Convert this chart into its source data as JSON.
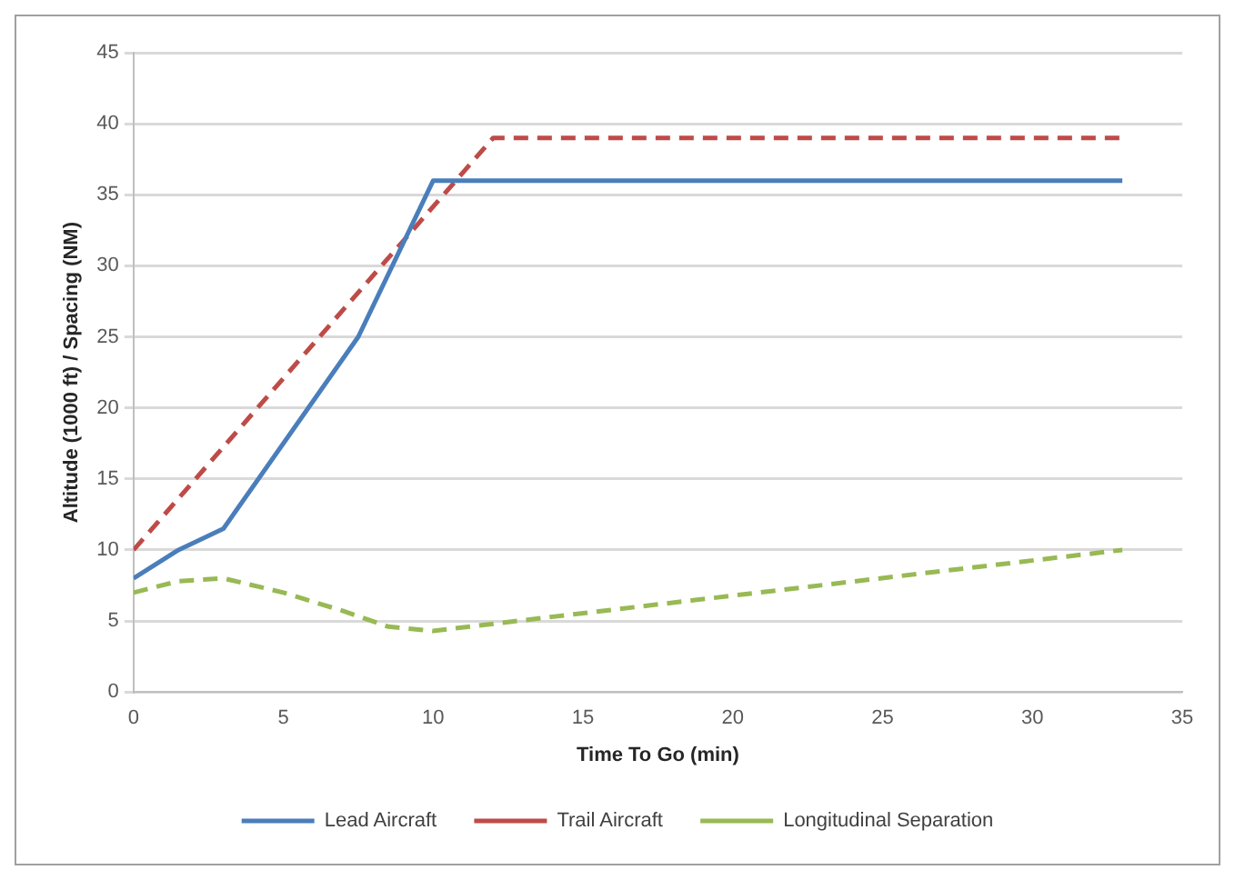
{
  "chart_data": {
    "type": "line",
    "xlabel": "Time To Go (min)",
    "ylabel": "Altitude (1000 ft) / Spacing (NM)",
    "xlim": [
      0,
      35
    ],
    "xticks": [
      0,
      5,
      10,
      15,
      20,
      25,
      30,
      35
    ],
    "ylim": [
      0,
      45
    ],
    "yticks": [
      0,
      5,
      10,
      15,
      20,
      25,
      30,
      35,
      40,
      45
    ],
    "grid": "y",
    "legend": "bottom",
    "marker": "none",
    "series": [
      {
        "name": "Lead Aircraft",
        "color": "#4a7ebb",
        "line_style": "solid",
        "x": [
          0,
          1.5,
          3,
          7.5,
          10,
          33
        ],
        "values": [
          8,
          10,
          11.5,
          25,
          36,
          36
        ]
      },
      {
        "name": "Trail Aircraft",
        "color": "#be4b48",
        "line_style": "dashed",
        "x": [
          0,
          12,
          33
        ],
        "values": [
          10,
          39,
          39
        ]
      },
      {
        "name": "Longitudinal Separation",
        "color": "#98b954",
        "line_style": "dashed",
        "x": [
          0,
          1.5,
          3,
          5,
          7,
          8.5,
          10,
          12,
          14,
          33
        ],
        "values": [
          7,
          7.8,
          8,
          7,
          5.7,
          4.6,
          4.3,
          4.8,
          5.3,
          10
        ]
      }
    ]
  }
}
